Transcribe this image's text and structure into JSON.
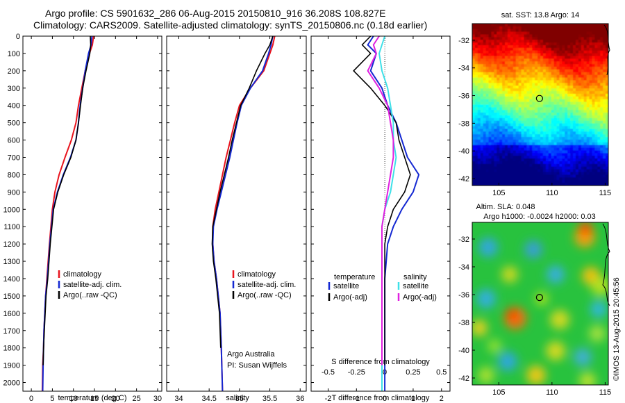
{
  "header": {
    "line1": "Argo profile: CS 5901632_286 06-Aug-2015 20150810_916 36.208S 108.827E",
    "line2": "Climatology: CARS2009. Satellite-adjusted climatology: synTS_20150806.nc (0.18d earlier)"
  },
  "side_stamp": "©IMOS 13-Aug-2015 20:45:56",
  "colors": {
    "climatology": "#e8141e",
    "satellite": "#1428d2",
    "argo": "#000000",
    "satellite_salinity": "#3ee0e8",
    "argo_salinity": "#e020e0"
  },
  "chart_data": [
    {
      "type": "line",
      "panel": "temperature",
      "xlabel": "temperature (deg C)",
      "ylabel": "",
      "xlim": [
        -2,
        31
      ],
      "ylim": [
        2050,
        0
      ],
      "xticks": [
        "0",
        "5",
        "10",
        "15",
        "20",
        "25",
        "30"
      ],
      "yticks": [
        "0",
        "100",
        "200",
        "300",
        "400",
        "500",
        "600",
        "700",
        "800",
        "900",
        "1000",
        "1100",
        "1200",
        "1300",
        "1400",
        "1500",
        "1600",
        "1700",
        "1800",
        "1900",
        "2000"
      ],
      "legend": [
        "climatology",
        "satellite-adj. clim.",
        "Argo(..raw -QC)"
      ],
      "series": [
        {
          "name": "climatology",
          "color": "#e8141e",
          "x": [
            14.8,
            14.5,
            13.8,
            12.8,
            12.0,
            11.2,
            10.6,
            9.5,
            8.0,
            6.6,
            5.6,
            5.0,
            4.3,
            3.7,
            3.4,
            3.2,
            3.0,
            2.9,
            2.7,
            2.6
          ],
          "y": [
            0,
            50,
            100,
            200,
            300,
            400,
            500,
            600,
            700,
            800,
            900,
            1000,
            1200,
            1400,
            1500,
            1600,
            1700,
            1800,
            1900,
            2050
          ]
        },
        {
          "name": "satellite-adj. clim.",
          "color": "#1428d2",
          "x": [
            14.4,
            14.2,
            13.6,
            12.8,
            12.2,
            11.6,
            11.2,
            10.6,
            9.3,
            7.6,
            6.2,
            5.2,
            4.4,
            3.8,
            3.4,
            3.2,
            3.0,
            2.9,
            2.8,
            2.7
          ],
          "y": [
            0,
            50,
            100,
            200,
            300,
            400,
            500,
            600,
            700,
            800,
            900,
            1000,
            1200,
            1400,
            1500,
            1600,
            1700,
            1800,
            1900,
            2050
          ]
        },
        {
          "name": "Argo(..raw -QC)",
          "color": "#000000",
          "x": [
            14.0,
            14.1,
            13.9,
            13.0,
            12.2,
            11.7,
            11.2,
            10.6,
            9.4,
            7.7,
            6.3,
            5.3,
            4.5,
            3.9,
            3.5,
            3.3,
            3.1,
            2.9,
            2.8
          ],
          "y": [
            0,
            50,
            100,
            200,
            300,
            400,
            500,
            600,
            700,
            800,
            900,
            1000,
            1200,
            1400,
            1500,
            1600,
            1700,
            1800,
            1900
          ]
        }
      ]
    },
    {
      "type": "line",
      "panel": "salinity",
      "xlabel": "salinity",
      "xlim": [
        33.8,
        36.1
      ],
      "ylim": [
        2050,
        0
      ],
      "xticks": [
        "34",
        "34.5",
        "35",
        "35.5",
        "36"
      ],
      "legend": [
        "climatology",
        "satellite-adj. clim.",
        "Argo(..raw -QC)"
      ],
      "annotation": [
        "Argo Australia",
        "PI: Susan Wijffels"
      ],
      "series": [
        {
          "name": "climatology",
          "color": "#e8141e",
          "x": [
            35.58,
            35.55,
            35.5,
            35.4,
            35.18,
            35.0,
            34.92,
            34.85,
            34.78,
            34.72,
            34.66,
            34.6,
            34.56,
            34.56,
            34.58,
            34.62,
            34.65,
            34.68,
            34.7,
            34.72
          ],
          "y": [
            0,
            50,
            100,
            200,
            300,
            400,
            500,
            600,
            700,
            800,
            900,
            1000,
            1100,
            1200,
            1300,
            1400,
            1500,
            1600,
            1800,
            2050
          ]
        },
        {
          "name": "satellite-adj. clim.",
          "color": "#1428d2",
          "x": [
            35.55,
            35.52,
            35.48,
            35.38,
            35.18,
            35.03,
            34.96,
            34.9,
            34.84,
            34.77,
            34.7,
            34.63,
            34.57,
            34.56,
            34.58,
            34.62,
            34.65,
            34.68,
            34.7,
            34.72
          ],
          "y": [
            0,
            50,
            100,
            200,
            300,
            400,
            500,
            600,
            700,
            800,
            900,
            1000,
            1100,
            1200,
            1300,
            1400,
            1500,
            1600,
            1800,
            2050
          ]
        },
        {
          "name": "Argo(..raw -QC)",
          "color": "#000000",
          "x": [
            35.55,
            35.5,
            35.42,
            35.28,
            35.16,
            35.02,
            34.95,
            34.88,
            34.82,
            34.75,
            34.68,
            34.62,
            34.56,
            34.55,
            34.57,
            34.61,
            34.64,
            34.67,
            34.69
          ],
          "y": [
            0,
            50,
            100,
            200,
            300,
            400,
            500,
            600,
            700,
            800,
            900,
            1000,
            1100,
            1200,
            1300,
            1400,
            1500,
            1600,
            1800
          ]
        }
      ]
    },
    {
      "type": "line",
      "panel": "difference",
      "xlabel": "T difference from climatology",
      "xlabel_top": "S difference from climatology",
      "xlim": [
        -2.6,
        2.3
      ],
      "ylim": [
        2050,
        0
      ],
      "xticks": [
        "-2",
        "-1",
        "0",
        "1",
        "2"
      ],
      "xticks_top": [
        "-0.5",
        "-0.25",
        "0",
        "0.25",
        "0.5"
      ],
      "legend_titles": [
        "temperature",
        "salinity"
      ],
      "legend": [
        "satellite",
        "Argo(-adj)",
        "satellite",
        "Argo(-adj)"
      ],
      "series": [
        {
          "name": "satellite",
          "color": "#1428d2",
          "x": [
            -0.4,
            -0.6,
            -0.3,
            -0.5,
            -0.1,
            0.1,
            0.4,
            0.6,
            0.8,
            1.2,
            1.0,
            0.6,
            0.3,
            0.1,
            0.0,
            0.0,
            0.0,
            0.0
          ],
          "y": [
            0,
            50,
            100,
            200,
            300,
            400,
            500,
            600,
            700,
            800,
            900,
            1000,
            1100,
            1200,
            1400,
            1600,
            1800,
            2050
          ]
        },
        {
          "name": "Argo(-adj)",
          "color": "#000000",
          "x": [
            -0.5,
            -0.8,
            -0.5,
            -1.1,
            -0.5,
            0.0,
            0.4,
            0.5,
            0.7,
            0.9,
            0.7,
            0.3,
            0.1,
            0.0,
            0.0,
            0.0,
            0.0
          ],
          "y": [
            0,
            50,
            100,
            200,
            300,
            400,
            500,
            600,
            700,
            800,
            900,
            1000,
            1100,
            1200,
            1400,
            1600,
            1900
          ]
        },
        {
          "name": "satellite",
          "color": "#3ee0e8",
          "x": [
            0.0,
            -0.1,
            -0.2,
            -0.1,
            0.1,
            0.2,
            0.3,
            0.3,
            0.4,
            0.3,
            0.2,
            0.0,
            -0.1,
            -0.1,
            -0.1,
            -0.1,
            -0.1
          ],
          "y": [
            0,
            50,
            100,
            200,
            300,
            400,
            500,
            600,
            700,
            800,
            900,
            1000,
            1100,
            1200,
            1400,
            1600,
            2050
          ]
        },
        {
          "name": "Argo(-adj)",
          "color": "#e020e0",
          "x": [
            -0.2,
            -0.4,
            -0.3,
            -0.6,
            -0.2,
            0.1,
            0.2,
            0.3,
            0.3,
            0.2,
            0.1,
            0.0,
            -0.1,
            -0.1,
            -0.1,
            -0.1
          ],
          "y": [
            0,
            50,
            100,
            200,
            300,
            400,
            500,
            600,
            700,
            800,
            900,
            1000,
            1100,
            1200,
            1400,
            1900
          ]
        }
      ]
    },
    {
      "type": "heatmap",
      "panel": "sst_map",
      "title": "sat. SST: 13.8 Argo: 14",
      "xlim": [
        102.5,
        115.3
      ],
      "ylim": [
        -42.5,
        -30.8
      ],
      "xticks": [
        "105",
        "110",
        "115"
      ],
      "yticks": [
        "-32",
        "-34",
        "-36",
        "-38",
        "-40",
        "-42"
      ],
      "marker": {
        "lon": 108.827,
        "lat": -36.208
      }
    },
    {
      "type": "heatmap",
      "panel": "sla_map",
      "title": [
        "Altim. SLA: 0.048",
        "Argo h1000: -0.0024 h2000: 0.03"
      ],
      "xlim": [
        102.5,
        115.3
      ],
      "ylim": [
        -42.5,
        -30.8
      ],
      "xticks": [
        "105",
        "110",
        "115"
      ],
      "yticks": [
        "-32",
        "-34",
        "-36",
        "-38",
        "-40",
        "-42"
      ],
      "marker": {
        "lon": 108.827,
        "lat": -36.208
      }
    }
  ]
}
